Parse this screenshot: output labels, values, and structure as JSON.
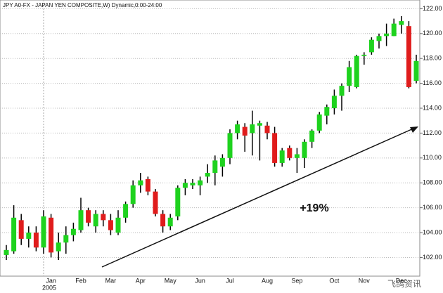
{
  "chart_data": {
    "type": "candlestick",
    "title": "JPY A0-FX - JAPAN YEN COMPOSITE,W) Dynamic,0:00-24:00",
    "annotation": "+19%",
    "watermark": "飞鸽资讯",
    "year_label": "2005",
    "categories": [
      null,
      null,
      null,
      null,
      null,
      null,
      "Jan",
      null,
      null,
      null,
      "Feb",
      null,
      null,
      null,
      "Mar",
      null,
      null,
      null,
      "Apr",
      null,
      null,
      null,
      "May",
      null,
      null,
      null,
      "Jun",
      null,
      null,
      null,
      "Jul",
      null,
      null,
      null,
      null,
      "Aug",
      null,
      null,
      null,
      "Sep",
      null,
      null,
      null,
      null,
      "Oct",
      null,
      null,
      null,
      "Nov",
      null,
      null,
      null,
      null,
      "Dec",
      null,
      null
    ],
    "open": [
      102.2,
      102.5,
      105,
      103.5,
      104,
      102.8,
      105.2,
      102.5,
      103.2,
      103.8,
      104.2,
      105.8,
      104.5,
      105.5,
      105,
      104,
      105.2,
      106.3,
      107.8,
      108.3,
      107.3,
      105.5,
      104.5,
      105.3,
      107.6,
      107.8,
      107.8,
      108.5,
      108.8,
      109.3,
      110,
      112,
      112.5,
      112,
      112.6,
      112.6,
      112,
      109.6,
      110.8,
      110,
      110,
      111.3,
      112.2,
      113.4,
      114,
      115,
      115.8,
      115.7,
      118.2,
      118.5,
      119.4,
      119.8,
      119.8,
      120.7,
      120.6,
      116.2
    ],
    "high": [
      103,
      106.2,
      105.5,
      104.5,
      104.5,
      105.8,
      105.5,
      104,
      104.5,
      104.8,
      106.8,
      106,
      105.8,
      105.8,
      105.5,
      105.8,
      106.5,
      108.2,
      108.8,
      108.5,
      107.5,
      105.8,
      105.5,
      107.8,
      108.3,
      108.3,
      108.5,
      109.5,
      110.2,
      110.3,
      112.3,
      113,
      112.8,
      113.8,
      113,
      112.9,
      112.5,
      110.8,
      111,
      110.8,
      111.5,
      112.3,
      113.7,
      114.3,
      115.5,
      116,
      117.8,
      118.3,
      118.5,
      119.7,
      120,
      120.8,
      121.2,
      121.4,
      121,
      118.3
    ],
    "low": [
      101.8,
      102.3,
      103,
      102.8,
      102.5,
      102.3,
      102,
      101.8,
      102.3,
      103.3,
      104,
      104.5,
      104,
      104.5,
      103.8,
      103.8,
      104.8,
      106,
      107.2,
      107,
      105.3,
      104,
      104.2,
      105,
      107,
      107.5,
      107,
      108,
      107.8,
      108.5,
      109.5,
      111.5,
      110.5,
      110.2,
      109.8,
      111.5,
      109.3,
      109.3,
      109.8,
      108.8,
      109.2,
      110.8,
      112,
      112.7,
      113.5,
      113.8,
      115.3,
      115.6,
      117.5,
      118.3,
      118.8,
      119,
      119.8,
      120,
      115.6,
      116
    ],
    "close": [
      102.6,
      105.2,
      103.5,
      104,
      102.8,
      105.3,
      102.4,
      103.2,
      103.8,
      104.3,
      105.8,
      104.8,
      105.5,
      105,
      104.2,
      105.2,
      106.3,
      107.8,
      108.2,
      107.3,
      105.5,
      104.5,
      105.2,
      107.6,
      108,
      108,
      108.2,
      108.8,
      109.8,
      110,
      112,
      112.7,
      111.8,
      112.7,
      112.8,
      112,
      109.6,
      110.6,
      110,
      110.3,
      111.3,
      112.2,
      113.5,
      114.1,
      115,
      115.8,
      117.3,
      118.2,
      118.3,
      119.5,
      119.8,
      120,
      120.8,
      121,
      115.7,
      117.8
    ],
    "up_color": "#1ed21e",
    "down_color": "#e01c1c",
    "ylim": [
      100.5,
      122.7
    ],
    "yticks": [
      {
        "value": 102,
        "label": "102.00"
      },
      {
        "value": 104,
        "label": "104.00"
      },
      {
        "value": 106,
        "label": "106.00"
      },
      {
        "value": 108,
        "label": "108.00"
      },
      {
        "value": 110,
        "label": "110.00"
      },
      {
        "value": 112,
        "label": "112.00"
      },
      {
        "value": 114,
        "label": "114.00"
      },
      {
        "value": 116,
        "label": "116.00"
      },
      {
        "value": 118,
        "label": "118.00"
      },
      {
        "value": 120,
        "label": "120.00"
      },
      {
        "value": 122,
        "label": "122.00"
      }
    ],
    "grid": true
  }
}
